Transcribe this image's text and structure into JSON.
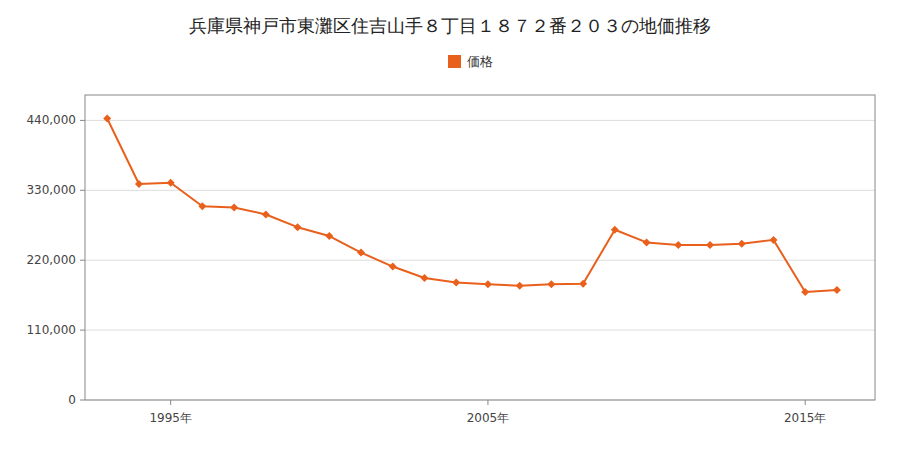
{
  "chart_data": {
    "type": "line",
    "title": "兵庫県神戸市東灘区住吉山手８丁目１８７２番２０３の地価推移",
    "x": [
      1993,
      1994,
      1995,
      1996,
      1997,
      1998,
      1999,
      2000,
      2001,
      2002,
      2003,
      2004,
      2005,
      2006,
      2007,
      2008,
      2009,
      2010,
      2011,
      2012,
      2013,
      2014,
      2015,
      2016
    ],
    "series": [
      {
        "name": "価格",
        "color": "#e8601c",
        "marker": "diamond",
        "values": [
          443000,
          340000,
          342000,
          305000,
          303000,
          292000,
          272000,
          258000,
          232000,
          210000,
          192000,
          185000,
          182000,
          180000,
          182000,
          183000,
          268000,
          248000,
          244000,
          244000,
          246000,
          252000,
          170000,
          173000
        ]
      }
    ],
    "xlim": [
      1992.3,
      2017.2
    ],
    "xticks": [
      {
        "value": 1995,
        "label": "1995年"
      },
      {
        "value": 2005,
        "label": "2005年"
      },
      {
        "value": 2015,
        "label": "2015年"
      }
    ],
    "ylim": [
      0,
      480000
    ],
    "yticks": [
      0,
      {
        "value": 110000,
        "label": "110,000"
      },
      {
        "value": 220000,
        "label": "220,000"
      },
      {
        "value": 330000,
        "label": "330,000"
      },
      {
        "value": 440000,
        "label": "440,000"
      }
    ],
    "grid": true,
    "legend": "top"
  }
}
